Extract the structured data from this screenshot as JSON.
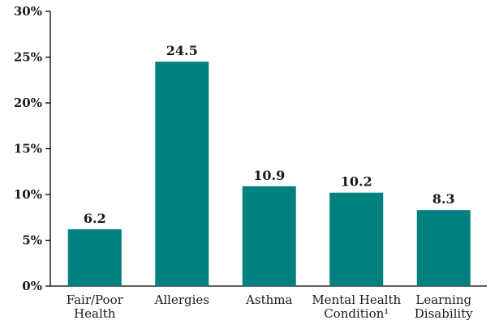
{
  "chart_data": {
    "type": "bar",
    "categories": [
      [
        "Fair/Poor",
        "Health"
      ],
      [
        "Allergies"
      ],
      [
        "Asthma"
      ],
      [
        "Mental Health",
        "Condition¹"
      ],
      [
        "Learning",
        "Disability"
      ]
    ],
    "values": [
      6.2,
      24.5,
      10.9,
      10.2,
      8.3
    ],
    "value_labels": [
      "6.2",
      "24.5",
      "10.9",
      "10.2",
      "8.3"
    ],
    "ylim": [
      0,
      30
    ],
    "y_ticks": [
      0,
      5,
      10,
      15,
      20,
      25,
      30
    ],
    "y_tick_labels": [
      "0%",
      "5%",
      "10%",
      "15%",
      "20%",
      "25%",
      "30%"
    ],
    "title": "",
    "xlabel": "",
    "ylabel": "",
    "grid": false,
    "bar_color": "#008080"
  }
}
